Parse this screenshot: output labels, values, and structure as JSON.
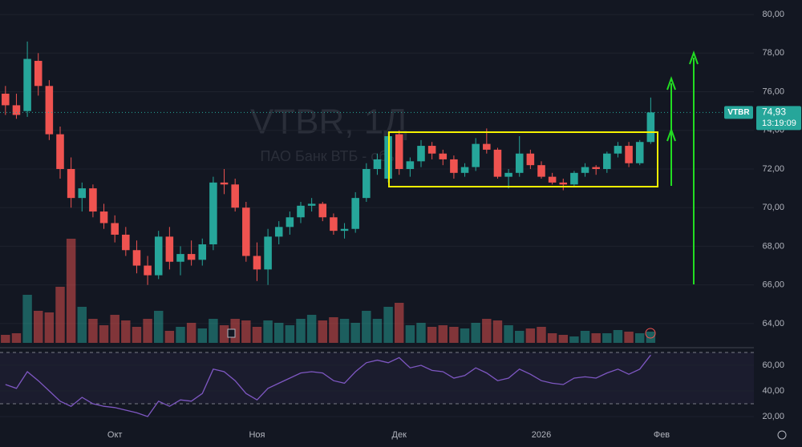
{
  "chart_data": [
    {
      "type": "candlestick",
      "watermark": "VTBR, 1Д",
      "watermark_subtitle": "ПАО Банк ВТБ - обы",
      "symbol": "VTBR",
      "price_tag": "74,93",
      "countdown": "13:19:09",
      "up_color": "#26a69a",
      "down_color": "#ef5350",
      "categories": [
        null,
        null,
        null,
        null,
        null,
        null,
        null,
        null,
        null,
        null,
        "Окт",
        null,
        null,
        null,
        null,
        null,
        null,
        null,
        null,
        null,
        null,
        null,
        null,
        "Ноя",
        null,
        null,
        null,
        null,
        null,
        null,
        null,
        null,
        null,
        null,
        null,
        null,
        "Дек",
        null,
        null,
        null,
        null,
        null,
        null,
        null,
        null,
        null,
        null,
        null,
        null,
        "2026",
        null,
        null,
        null,
        null,
        null,
        null,
        null,
        null,
        null,
        null,
        "Фев"
      ],
      "open": [
        75.9,
        75.3,
        75.0,
        77.6,
        76.3,
        73.8,
        72.0,
        70.5,
        71.0,
        69.8,
        69.2,
        68.6,
        67.8,
        67.0,
        66.5,
        68.5,
        67.2,
        67.6,
        67.3,
        68.1,
        71.3,
        71.2,
        70.0,
        67.5,
        66.8,
        68.5,
        69.0,
        69.5,
        70.1,
        70.2,
        69.5,
        68.8,
        68.9,
        70.5,
        72.0,
        71.5,
        73.8,
        72.0,
        72.4,
        73.2,
        72.8,
        72.5,
        71.8,
        72.1,
        73.3,
        73.0,
        71.6,
        71.8,
        72.8,
        72.2,
        71.6,
        71.3,
        71.2,
        71.8,
        72.1,
        72.0,
        72.8,
        73.2,
        72.3,
        73.4,
        null
      ],
      "high": [
        76.3,
        75.9,
        78.6,
        78.0,
        76.6,
        74.2,
        72.6,
        71.3,
        71.2,
        70.2,
        69.6,
        69.0,
        68.3,
        67.5,
        68.8,
        69.0,
        68.0,
        68.3,
        68.4,
        71.6,
        72.0,
        71.5,
        70.3,
        68.2,
        68.9,
        69.3,
        69.8,
        70.3,
        70.5,
        70.3,
        69.7,
        69.2,
        70.8,
        72.3,
        72.8,
        73.9,
        74.0,
        72.6,
        73.5,
        73.4,
        73.0,
        72.7,
        72.3,
        73.6,
        74.1,
        73.1,
        72.0,
        73.7,
        73.0,
        72.4,
        71.8,
        71.5,
        71.9,
        72.3,
        72.2,
        72.9,
        73.4,
        73.4,
        73.5,
        75.7,
        null
      ],
      "low": [
        74.8,
        74.6,
        74.7,
        75.8,
        73.5,
        71.5,
        70.0,
        69.8,
        69.5,
        68.9,
        68.2,
        67.5,
        66.6,
        66.0,
        66.3,
        66.8,
        66.5,
        67.0,
        67.0,
        67.8,
        70.7,
        69.8,
        67.2,
        66.2,
        66.0,
        68.1,
        68.6,
        69.2,
        69.8,
        69.3,
        68.6,
        68.4,
        68.7,
        70.3,
        71.7,
        71.3,
        71.7,
        71.6,
        72.1,
        72.5,
        72.2,
        71.5,
        71.6,
        71.9,
        72.8,
        71.5,
        71.0,
        71.6,
        72.0,
        71.5,
        71.2,
        70.9,
        71.1,
        71.6,
        71.7,
        71.8,
        72.6,
        72.1,
        72.2,
        73.3,
        null
      ],
      "close": [
        75.3,
        74.8,
        77.7,
        76.3,
        73.8,
        72.0,
        70.5,
        71.0,
        69.8,
        69.2,
        68.6,
        67.8,
        67.0,
        66.5,
        68.5,
        67.2,
        67.6,
        67.3,
        68.1,
        71.3,
        71.2,
        70.0,
        67.5,
        66.8,
        68.5,
        69.0,
        69.5,
        70.1,
        70.2,
        69.5,
        68.8,
        68.9,
        70.5,
        72.0,
        72.5,
        73.7,
        72.0,
        72.4,
        73.2,
        72.8,
        72.5,
        71.8,
        72.1,
        73.3,
        73.0,
        71.6,
        71.8,
        72.8,
        72.2,
        71.6,
        71.3,
        71.2,
        71.8,
        72.1,
        72.0,
        72.8,
        73.2,
        72.3,
        73.4,
        74.93,
        null
      ],
      "volume": [
        10,
        12,
        60,
        40,
        38,
        70,
        130,
        45,
        30,
        22,
        35,
        28,
        20,
        30,
        40,
        15,
        20,
        25,
        18,
        30,
        22,
        30,
        28,
        20,
        28,
        25,
        22,
        30,
        35,
        28,
        32,
        30,
        25,
        40,
        30,
        45,
        50,
        22,
        25,
        20,
        22,
        20,
        18,
        25,
        30,
        28,
        22,
        15,
        18,
        20,
        12,
        10,
        8,
        15,
        12,
        12,
        16,
        14,
        12,
        14,
        null
      ],
      "ylim": [
        63,
        80.75
      ],
      "yticks": [
        {
          "value": 64,
          "label": "64,00"
        },
        {
          "value": 66,
          "label": "66,00"
        },
        {
          "value": 68,
          "label": "68,00"
        },
        {
          "value": 70,
          "label": "70,00"
        },
        {
          "value": 72,
          "label": "72,00"
        },
        {
          "value": 74,
          "label": "74,00"
        },
        {
          "value": 76,
          "label": "76,00"
        },
        {
          "value": 78,
          "label": "78,00"
        },
        {
          "value": 80,
          "label": "80,00"
        }
      ]
    },
    {
      "type": "line",
      "color": "#7e57c2",
      "values": [
        45,
        42,
        55,
        48,
        40,
        32,
        28,
        35,
        30,
        28,
        27,
        25,
        23,
        20,
        32,
        28,
        33,
        32,
        38,
        57,
        55,
        48,
        38,
        33,
        42,
        46,
        50,
        54,
        55,
        54,
        48,
        46,
        55,
        62,
        64,
        62,
        66,
        58,
        60,
        56,
        55,
        50,
        52,
        58,
        54,
        48,
        50,
        57,
        53,
        48,
        46,
        45,
        50,
        51,
        50,
        54,
        57,
        53,
        57,
        68,
        null
      ],
      "ylim": [
        13.75,
        70
      ],
      "yticks": [
        {
          "value": 20,
          "label": "20,00"
        },
        {
          "value": 40,
          "label": "40,00"
        },
        {
          "value": 60,
          "label": "60,00"
        }
      ],
      "bands": [
        30,
        70
      ]
    }
  ]
}
